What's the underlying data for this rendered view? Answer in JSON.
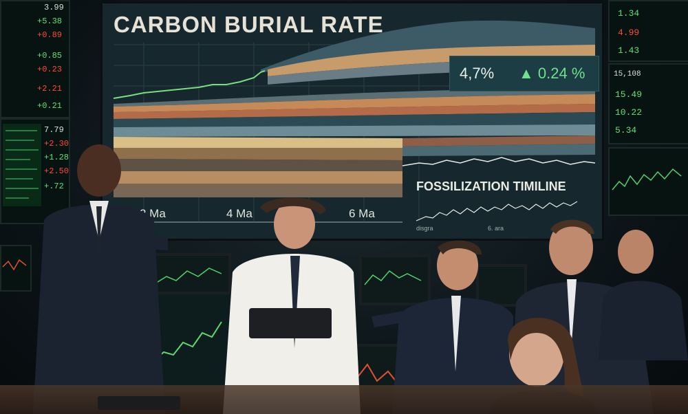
{
  "wall": {
    "title": "CARBON BURIAL RATE",
    "stat_value": "4,7%",
    "stat_change": "▲ 0.24 %",
    "axis_labels": [
      "2 Ma",
      "4 Ma",
      "6 Ma"
    ],
    "timeline_title": "FOSSILIZATION TIMILINE",
    "mini_labels": [
      "disgra",
      "6. ara"
    ]
  },
  "tickers": {
    "left": [
      {
        "text": "+5.38",
        "tone": "up"
      },
      {
        "text": "+0.89",
        "tone": "dn"
      },
      {
        "text": "+0.85",
        "tone": "up"
      },
      {
        "text": "+0.23",
        "tone": "dn"
      },
      {
        "text": "+2.21",
        "tone": "dn"
      },
      {
        "text": "+0.21",
        "tone": "up"
      },
      {
        "text": "7.79",
        "tone": "neu"
      },
      {
        "text": "+2.30",
        "tone": "dn"
      },
      {
        "text": "+1.28",
        "tone": "up"
      },
      {
        "text": "+2.50",
        "tone": "dn"
      },
      {
        "text": "+.72",
        "tone": "up"
      }
    ],
    "left_top": "3.99",
    "right": [
      {
        "text": "1.34",
        "tone": "up"
      },
      {
        "text": "4.99",
        "tone": "dn"
      },
      {
        "text": "1.43",
        "tone": "up"
      },
      {
        "text": "15,108",
        "tone": "neu"
      },
      {
        "text": "15.49",
        "tone": "up"
      },
      {
        "text": "10.22",
        "tone": "up"
      },
      {
        "text": "5.34",
        "tone": "up"
      }
    ]
  },
  "colors": {
    "accent_green": "#6fe08c",
    "accent_red": "#ff4a3a",
    "screen_bg": "#16272d"
  }
}
